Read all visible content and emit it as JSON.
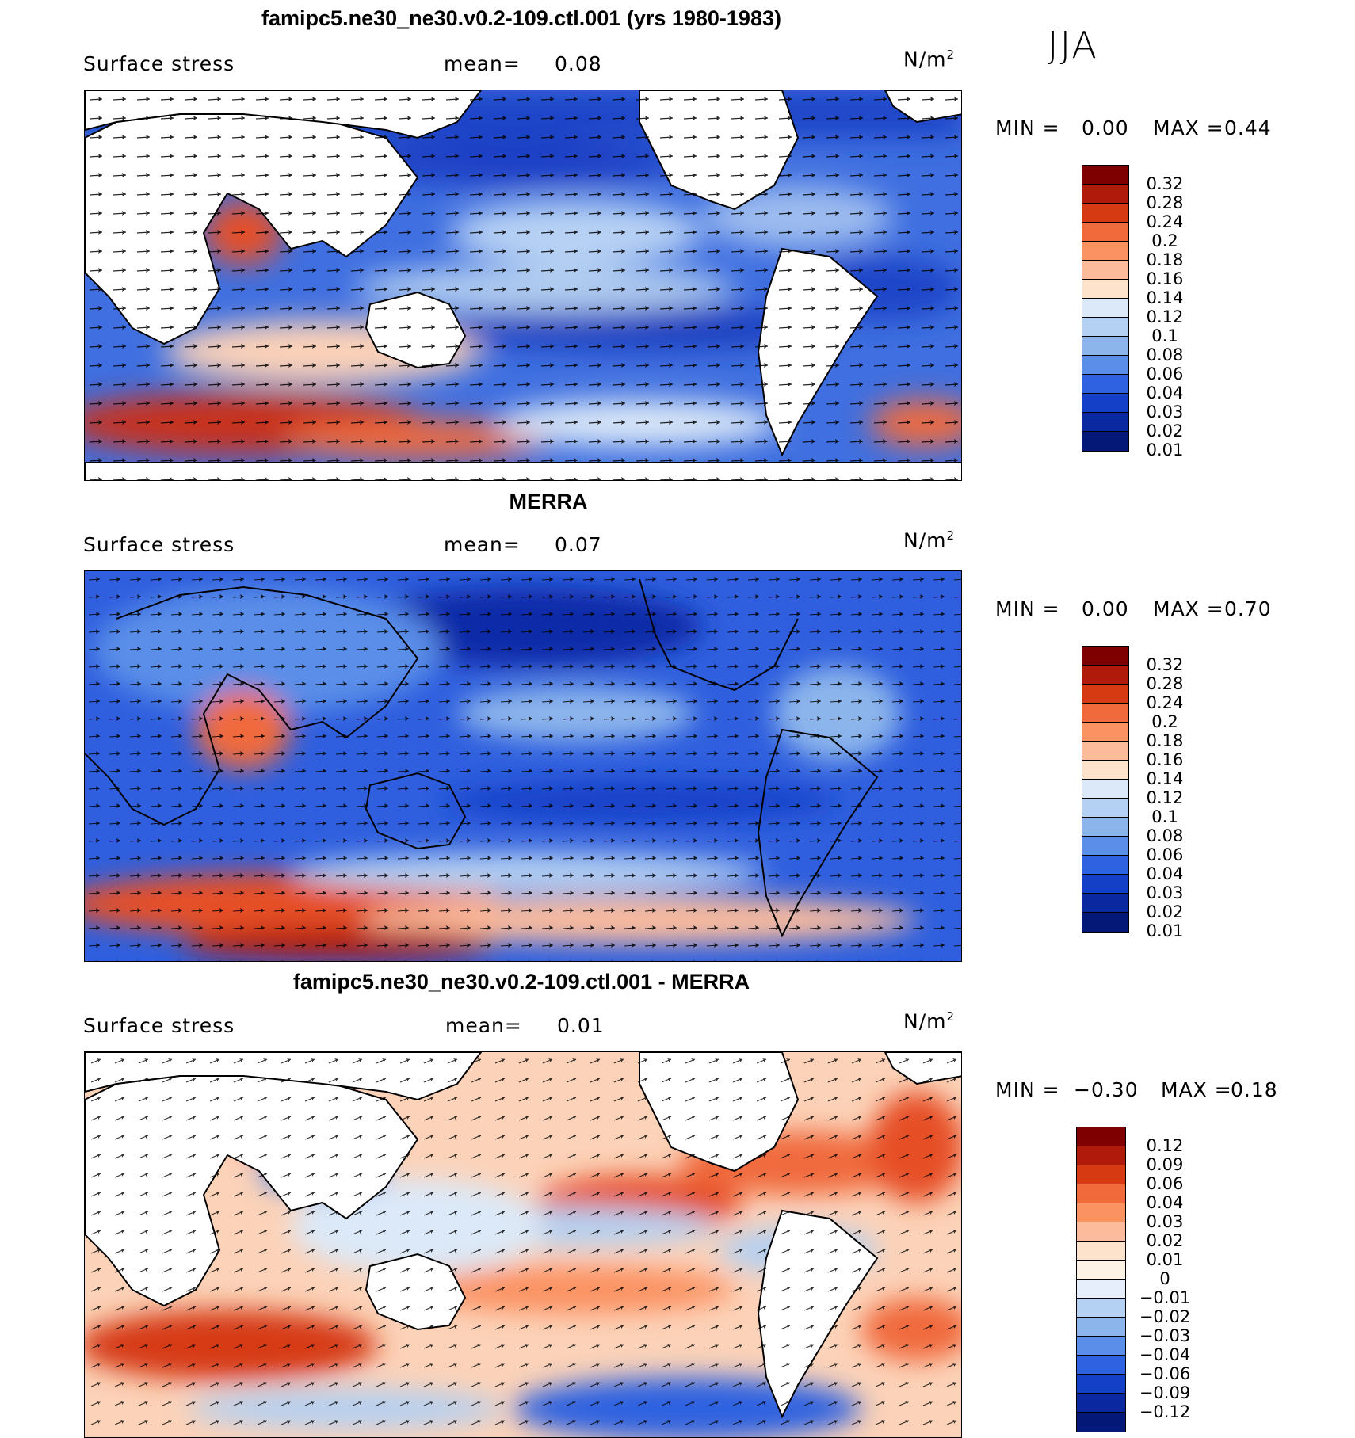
{
  "season": "JJA",
  "panels": [
    {
      "title": "famipc5.ne30_ne30.v0.2-109.ctl.001 (yrs 1980-1983)",
      "variable": "Surface stress",
      "mean_label": "mean=",
      "mean_value": "0.08",
      "units": "N/m",
      "units_exp": "2",
      "min_label": "MIN =",
      "min_value": "0.00",
      "max_label": "MAX =",
      "max_value": "0.44",
      "colorbar": {
        "colors": [
          "#7f0000",
          "#b01a0a",
          "#d63a12",
          "#f06a3c",
          "#fb9262",
          "#fcbc9c",
          "#fde2cc",
          "#dbe9f8",
          "#b4d0f2",
          "#8cb5ec",
          "#5a8ee8",
          "#2e62e0",
          "#1440c8",
          "#0a28a0",
          "#041878"
        ],
        "labels": [
          "0.32",
          "0.28",
          "0.24",
          "0.2",
          "0.18",
          "0.16",
          "0.14",
          "0.12",
          "0.1",
          "0.08",
          "0.06",
          "0.04",
          "0.03",
          "0.02",
          "0.01"
        ]
      }
    },
    {
      "title": "MERRA",
      "variable": "Surface stress",
      "mean_label": "mean=",
      "mean_value": "0.07",
      "units": "N/m",
      "units_exp": "2",
      "min_label": "MIN =",
      "min_value": "0.00",
      "max_label": "MAX =",
      "max_value": "0.70",
      "colorbar": {
        "colors": [
          "#7f0000",
          "#b01a0a",
          "#d63a12",
          "#f06a3c",
          "#fb9262",
          "#fcbc9c",
          "#fde2cc",
          "#dbe9f8",
          "#b4d0f2",
          "#8cb5ec",
          "#5a8ee8",
          "#2e62e0",
          "#1440c8",
          "#0a28a0",
          "#041878"
        ],
        "labels": [
          "0.32",
          "0.28",
          "0.24",
          "0.2",
          "0.18",
          "0.16",
          "0.14",
          "0.12",
          "0.1",
          "0.08",
          "0.06",
          "0.04",
          "0.03",
          "0.02",
          "0.01"
        ]
      }
    },
    {
      "title": "famipc5.ne30_ne30.v0.2-109.ctl.001 - MERRA",
      "variable": "Surface stress",
      "mean_label": "mean=",
      "mean_value": "0.01",
      "units": "N/m",
      "units_exp": "2",
      "min_label": "MIN =",
      "min_value": "−0.30",
      "max_label": "MAX =",
      "max_value": "0.18",
      "colorbar": {
        "colors": [
          "#7f0000",
          "#b01a0a",
          "#d63a12",
          "#f06a3c",
          "#fb9262",
          "#fcbc9c",
          "#fde2cc",
          "#fdf2e6",
          "#e6eefb",
          "#b4d0f2",
          "#8cb5ec",
          "#5a8ee8",
          "#2e62e0",
          "#1440c8",
          "#0a28a0",
          "#041878"
        ],
        "labels": [
          "0.12",
          "0.09",
          "0.06",
          "0.04",
          "0.03",
          "0.02",
          "0.01",
          "0",
          "−0.01",
          "−0.02",
          "−0.03",
          "−0.04",
          "−0.06",
          "−0.09",
          "−0.12"
        ]
      }
    }
  ]
}
